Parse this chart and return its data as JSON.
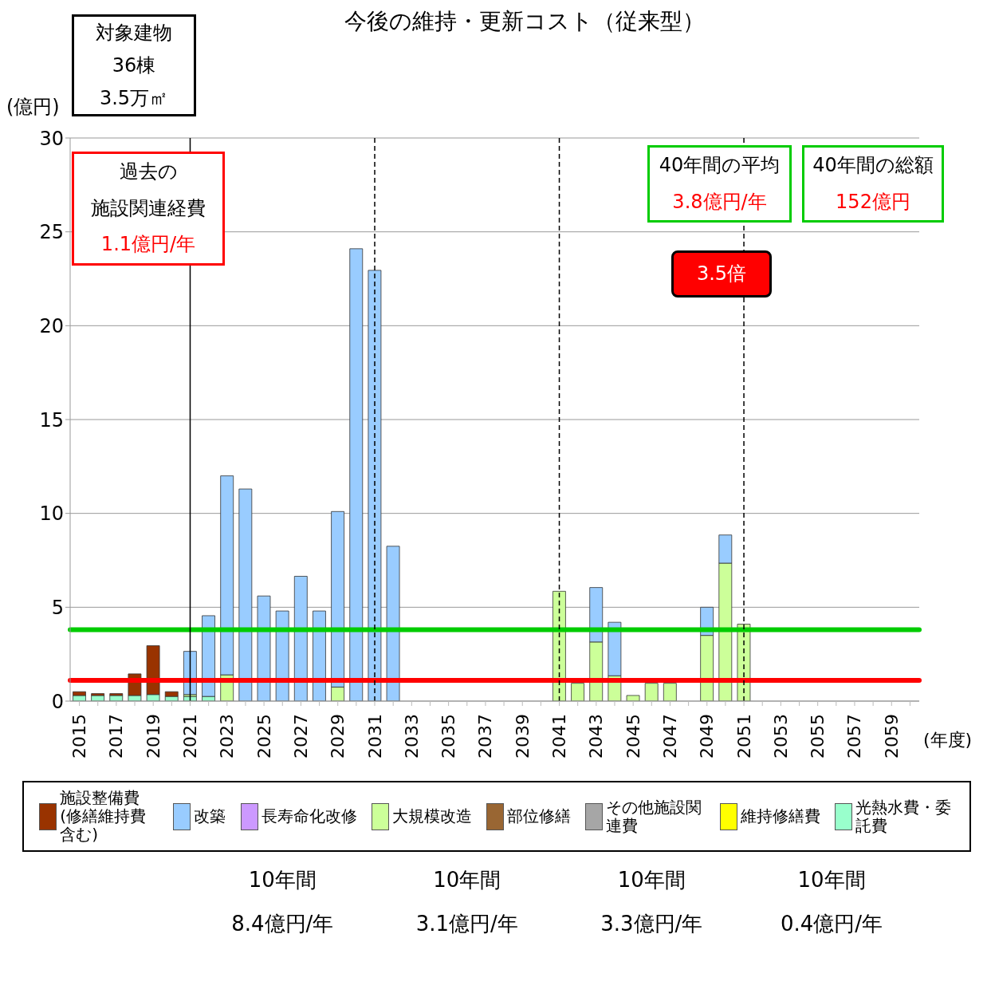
{
  "chart_data": {
    "type": "bar",
    "title": "今後の維持・更新コスト（従来型）",
    "ylabel": "(億円)",
    "xlabel": "(年度)",
    "categories": [
      "2015",
      null,
      "2017",
      null,
      "2019",
      null,
      "2021",
      null,
      "2023",
      null,
      "2025",
      null,
      "2027",
      null,
      "2029",
      null,
      "2031",
      null,
      "2033",
      null,
      "2035",
      null,
      "2037",
      null,
      "2039",
      null,
      "2041",
      null,
      "2043",
      null,
      "2045",
      null,
      "2047",
      null,
      "2049",
      null,
      "2051",
      null,
      "2053",
      null,
      "2055",
      null,
      "2057",
      null,
      "2059",
      null
    ],
    "stacked": true,
    "ylim": [
      0,
      30
    ],
    "yticks": [
      0,
      5,
      10,
      15,
      20,
      25,
      30
    ],
    "grid": "y",
    "legend": "bottom",
    "series": [
      {
        "name": "光熱水費・委託費",
        "color": "#99ffcc",
        "values": [
          0.3,
          0.3,
          0.3,
          0.3,
          0.35,
          0.25,
          0.25,
          0.25,
          0,
          0,
          0,
          0,
          0,
          0,
          0,
          0,
          0,
          0,
          0,
          0,
          0,
          0,
          0,
          0,
          0,
          0,
          0,
          0,
          0,
          0,
          0,
          0,
          0,
          0,
          0,
          0,
          0,
          0,
          0,
          0,
          0,
          0,
          0,
          0,
          0,
          0
        ]
      },
      {
        "name": "維持修繕費",
        "color": "#ffff00",
        "values": [
          0,
          0,
          0,
          0,
          0,
          0,
          0,
          0,
          0,
          0,
          0,
          0,
          0,
          0,
          0,
          0,
          0,
          0,
          0,
          0,
          0,
          0,
          0,
          0,
          0,
          0,
          0,
          0,
          0,
          0,
          0,
          0,
          0,
          0,
          0,
          0,
          0,
          0,
          0,
          0,
          0,
          0,
          0,
          0,
          0,
          0
        ]
      },
      {
        "name": "その他施設関連費",
        "color": "#a6a6a6",
        "values": [
          0,
          0,
          0,
          0,
          0,
          0,
          0,
          0,
          0,
          0,
          0,
          0,
          0,
          0,
          0,
          0,
          0,
          0,
          0,
          0,
          0,
          0,
          0,
          0,
          0,
          0,
          0,
          0,
          0,
          0,
          0,
          0,
          0,
          0,
          0,
          0,
          0,
          0,
          0,
          0,
          0,
          0,
          0,
          0,
          0,
          0
        ]
      },
      {
        "name": "部位修繕",
        "color": "#996633",
        "values": [
          0,
          0,
          0,
          0,
          0,
          0,
          0,
          0,
          0,
          0,
          0,
          0,
          0,
          0,
          0,
          0,
          0,
          0,
          0,
          0,
          0,
          0,
          0,
          0,
          0,
          0,
          0,
          0,
          0,
          0,
          0,
          0,
          0,
          0,
          0,
          0,
          0,
          0,
          0,
          0,
          0,
          0,
          0,
          0,
          0,
          0
        ]
      },
      {
        "name": "大規模改造",
        "color": "#ccff99",
        "values": [
          0,
          0,
          0,
          0,
          0,
          0,
          0.1,
          0,
          1.4,
          0,
          0,
          0,
          0,
          0,
          0.75,
          0,
          0,
          0,
          0,
          0,
          0,
          0,
          0,
          0,
          0,
          0,
          5.85,
          0.95,
          3.15,
          1.35,
          0.3,
          0.95,
          0.95,
          0,
          3.5,
          7.35,
          4.1,
          0,
          0,
          0,
          0,
          0,
          0,
          0,
          0,
          0
        ]
      },
      {
        "name": "長寿命化改修",
        "color": "#cc99ff",
        "values": [
          0,
          0,
          0,
          0,
          0,
          0,
          0,
          0,
          0,
          0,
          0,
          0,
          0,
          0,
          0,
          0,
          0,
          0,
          0,
          0,
          0,
          0,
          0,
          0,
          0,
          0,
          0,
          0,
          0,
          0,
          0,
          0,
          0,
          0,
          0,
          0,
          0,
          0,
          0,
          0,
          0,
          0,
          0,
          0,
          0,
          0
        ]
      },
      {
        "name": "改築",
        "color": "#99ccff",
        "values": [
          0,
          0,
          0,
          0,
          0,
          0,
          2.3,
          4.3,
          10.6,
          11.3,
          5.6,
          4.8,
          6.65,
          4.8,
          9.35,
          24.1,
          22.95,
          8.25,
          0,
          0,
          0,
          0,
          0,
          0,
          0,
          0,
          0,
          0,
          2.9,
          2.85,
          0,
          0,
          0,
          0,
          1.5,
          1.5,
          0,
          0,
          0,
          0,
          0,
          0,
          0,
          0,
          0,
          0
        ]
      },
      {
        "name": "施設整備費(修繕維持費含む)",
        "color": "#993300",
        "values": [
          0.2,
          0.1,
          0.1,
          1.15,
          2.6,
          0.25,
          0,
          0,
          0,
          0,
          0,
          0,
          0,
          0,
          0,
          0,
          0,
          0,
          0,
          0,
          0,
          0,
          0,
          0,
          0,
          0,
          0,
          0,
          0,
          0,
          0,
          0,
          0,
          0,
          0,
          0,
          0,
          0,
          0,
          0,
          0,
          0,
          0,
          0,
          0,
          0
        ]
      }
    ],
    "ref_lines": [
      {
        "axis": "y",
        "value": 1.1,
        "color": "#ff0000",
        "line_style": "solid"
      },
      {
        "axis": "y",
        "value": 3.8,
        "color": "#00cc00",
        "line_style": "solid"
      },
      {
        "axis": "x",
        "value": "2021",
        "color": "#000000",
        "line_style": "solid"
      },
      {
        "axis": "x",
        "value": "2031",
        "color": "#000000",
        "line_style": "dashed"
      },
      {
        "axis": "x",
        "value": "2041",
        "color": "#000000",
        "line_style": "dashed"
      },
      {
        "axis": "x",
        "value": "2051",
        "color": "#000000",
        "line_style": "dashed"
      }
    ],
    "annotations": [
      "対象建物",
      "36棟",
      "3.5万㎡",
      "過去の",
      "施設関連経費",
      "1.1億円/年",
      "40年間の平均",
      "3.8億円/年",
      "40年間の総額",
      "152億円",
      "3.5倍",
      "10年間",
      "8.4億円/年",
      "10年間",
      "3.1億円/年",
      "10年間",
      "3.3億円/年",
      "10年間",
      "0.4億円/年"
    ]
  }
}
